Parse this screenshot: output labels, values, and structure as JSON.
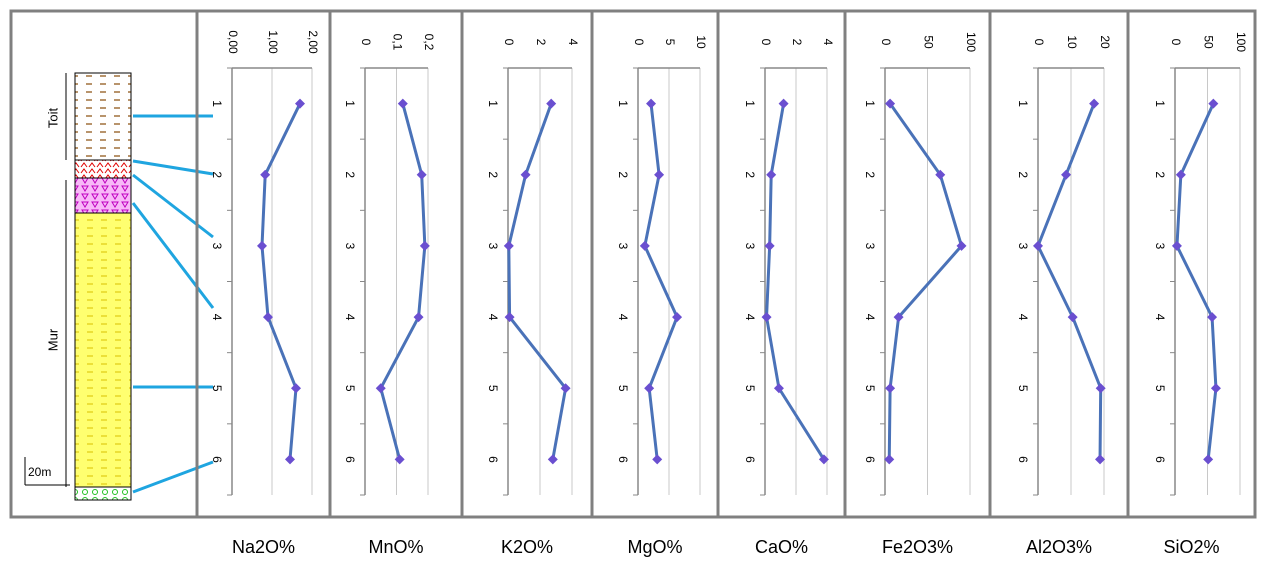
{
  "lithology": {
    "labels": [
      "Toit",
      "Mur"
    ],
    "scale": "20m"
  },
  "chart_data": [
    {
      "type": "line",
      "title": "Na2O%",
      "categories": [
        "1",
        "2",
        "3",
        "4",
        "5",
        "6"
      ],
      "values": [
        1.7,
        0.83,
        0.75,
        0.9,
        1.6,
        1.45
      ],
      "xlim": [
        0,
        2
      ],
      "xticks": [
        {
          "value": 0,
          "label": "0,00"
        },
        {
          "value": 1,
          "label": "1,00"
        },
        {
          "value": 2,
          "label": "2,00"
        }
      ],
      "color": "#4a72b8",
      "marker_color": "#6a4fd0"
    },
    {
      "type": "line",
      "title": "MnO%",
      "categories": [
        "1",
        "2",
        "3",
        "4",
        "5",
        "6"
      ],
      "values": [
        0.12,
        0.18,
        0.19,
        0.17,
        0.05,
        0.11
      ],
      "xlim": [
        0,
        0.2
      ],
      "xticks": [
        0,
        {
          "value": 0.1,
          "label": "0,1"
        },
        {
          "value": 0.2,
          "label": "0,2"
        }
      ],
      "color": "#4a72b8",
      "marker_color": "#6a4fd0"
    },
    {
      "type": "line",
      "title": "K2O%",
      "categories": [
        "1",
        "2",
        "3",
        "4",
        "5",
        "6"
      ],
      "values": [
        2.7,
        1.1,
        0.05,
        0.1,
        3.6,
        2.8
      ],
      "xlim": [
        0,
        4
      ],
      "xticks": [
        0,
        2,
        4
      ],
      "color": "#4a72b8",
      "marker_color": "#6a4fd0"
    },
    {
      "type": "line",
      "title": "MgO%",
      "categories": [
        "1",
        "2",
        "3",
        "4",
        "5",
        "6"
      ],
      "values": [
        2.1,
        3.4,
        1.1,
        6.3,
        1.8,
        3.1
      ],
      "xlim": [
        0,
        10
      ],
      "xticks": [
        0,
        5,
        10
      ],
      "color": "#4a72b8",
      "marker_color": "#6a4fd0"
    },
    {
      "type": "line",
      "title": "CaO%",
      "categories": [
        "1",
        "2",
        "3",
        "4",
        "5",
        "6"
      ],
      "values": [
        1.2,
        0.4,
        0.3,
        0.1,
        0.9,
        3.8
      ],
      "xlim": [
        0,
        4
      ],
      "xticks": [
        0,
        2,
        4
      ],
      "color": "#4a72b8",
      "marker_color": "#6a4fd0"
    },
    {
      "type": "line",
      "title": "Fe2O3%",
      "categories": [
        "1",
        "2",
        "3",
        "4",
        "5",
        "6"
      ],
      "values": [
        6,
        65,
        90,
        16,
        6,
        5
      ],
      "xlim": [
        0,
        100
      ],
      "xticks": [
        0,
        50,
        100
      ],
      "color": "#4a72b8",
      "marker_color": "#6a4fd0"
    },
    {
      "type": "line",
      "title": "Al2O3%",
      "categories": [
        "1",
        "2",
        "3",
        "4",
        "5",
        "6"
      ],
      "values": [
        17,
        8.5,
        0,
        10.5,
        19,
        18.8
      ],
      "xlim": [
        0,
        20
      ],
      "xticks": [
        0,
        10,
        20
      ],
      "color": "#4a72b8",
      "marker_color": "#6a4fd0"
    },
    {
      "type": "line",
      "title": "SiO2%",
      "categories": [
        "1",
        "2",
        "3",
        "4",
        "5",
        "6"
      ],
      "values": [
        59,
        9,
        3,
        57,
        63,
        51
      ],
      "xlim": [
        0,
        100
      ],
      "xticks": [
        0,
        50,
        100
      ],
      "color": "#4a72b8",
      "marker_color": "#6a4fd0"
    }
  ]
}
